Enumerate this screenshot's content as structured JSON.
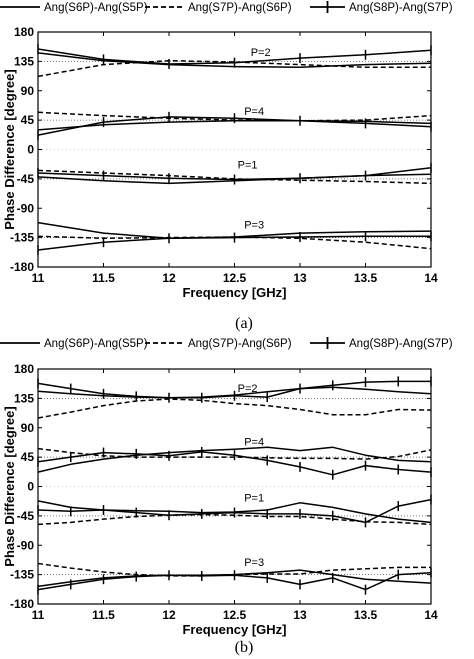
{
  "legend": [
    {
      "label": "Ang(S6P)-Ang(S5P)",
      "style": "solid"
    },
    {
      "label": "Ang(S7P)-Ang(S6P)",
      "style": "dashed"
    },
    {
      "label": "Ang(S8P)-Ang(S7P)",
      "style": "solid-plus"
    }
  ],
  "chart_data": [
    {
      "type": "line",
      "caption": "(a)",
      "xlabel": "Frequency [GHz]",
      "ylabel": "Phase Difference [degree]",
      "xlim": [
        11,
        14
      ],
      "ylim": [
        -180,
        180
      ],
      "xticks": [
        11,
        11.5,
        12,
        12.5,
        13,
        13.5,
        14
      ],
      "xtick_labels": [
        "11",
        "11.5",
        "12",
        "12.5",
        "13",
        "13.5",
        "14"
      ],
      "yticks": [
        180,
        135,
        90,
        45,
        0,
        -45,
        -90,
        -135,
        -180
      ],
      "grid": "horizontal-dotted",
      "reference_lines": [
        135,
        45,
        -45,
        -135
      ],
      "annotations": [
        {
          "text": "P=2",
          "x": 12.7,
          "y": 143
        },
        {
          "text": "P=4",
          "x": 12.65,
          "y": 53
        },
        {
          "text": "P=1",
          "x": 12.6,
          "y": -29
        },
        {
          "text": "P=3",
          "x": 12.65,
          "y": -121
        }
      ],
      "series": [
        {
          "name": "Ang(S6P)-Ang(S5P)",
          "group": "P=2",
          "x": [
            11,
            11.5,
            12,
            12.5,
            13,
            13.5,
            14
          ],
          "y": [
            148,
            136,
            130,
            127,
            126,
            130,
            132
          ]
        },
        {
          "name": "Ang(S7P)-Ang(S6P)",
          "group": "P=2",
          "x": [
            11,
            11.5,
            12,
            12.5,
            13,
            13.5,
            14
          ],
          "y": [
            112,
            130,
            136,
            134,
            130,
            126,
            126
          ]
        },
        {
          "name": "Ang(S8P)-Ang(S7P)",
          "group": "P=2",
          "x": [
            11,
            11.5,
            12,
            12.5,
            13,
            13.5,
            14
          ],
          "y": [
            154,
            138,
            131,
            133,
            140,
            145,
            152
          ]
        },
        {
          "name": "Ang(S6P)-Ang(S5P)",
          "group": "P=4",
          "x": [
            11,
            11.5,
            12,
            12.5,
            13,
            13.5,
            14
          ],
          "y": [
            30,
            38,
            42,
            44,
            44,
            43,
            40
          ]
        },
        {
          "name": "Ang(S7P)-Ang(S6P)",
          "group": "P=4",
          "x": [
            11,
            11.5,
            12,
            12.5,
            13,
            13.5,
            14
          ],
          "y": [
            57,
            52,
            48,
            45,
            44,
            45,
            52
          ]
        },
        {
          "name": "Ang(S8P)-Ang(S7P)",
          "group": "P=4",
          "x": [
            11,
            11.5,
            12,
            12.5,
            13,
            13.5,
            14
          ],
          "y": [
            22,
            42,
            50,
            48,
            44,
            40,
            35
          ]
        },
        {
          "name": "Ang(S6P)-Ang(S5P)",
          "group": "P=1",
          "x": [
            11,
            11.5,
            12,
            12.5,
            13,
            13.5,
            14
          ],
          "y": [
            -42,
            -48,
            -52,
            -48,
            -44,
            -40,
            -38
          ]
        },
        {
          "name": "Ang(S7P)-Ang(S6P)",
          "group": "P=1",
          "x": [
            11,
            11.5,
            12,
            12.5,
            13,
            13.5,
            14
          ],
          "y": [
            -32,
            -36,
            -40,
            -45,
            -47,
            -49,
            -52
          ]
        },
        {
          "name": "Ang(S8P)-Ang(S7P)",
          "group": "P=1",
          "x": [
            11,
            11.5,
            12,
            12.5,
            13,
            13.5,
            14
          ],
          "y": [
            -36,
            -40,
            -44,
            -46,
            -44,
            -40,
            -28
          ]
        },
        {
          "name": "Ang(S6P)-Ang(S5P)",
          "group": "P=3",
          "x": [
            11,
            11.5,
            12,
            12.5,
            13,
            13.5,
            14
          ],
          "y": [
            -112,
            -128,
            -136,
            -134,
            -128,
            -126,
            -125
          ]
        },
        {
          "name": "Ang(S7P)-Ang(S6P)",
          "group": "P=3",
          "x": [
            11,
            11.5,
            12,
            12.5,
            13,
            13.5,
            14
          ],
          "y": [
            -133,
            -136,
            -135,
            -134,
            -136,
            -142,
            -152
          ]
        },
        {
          "name": "Ang(S8P)-Ang(S7P)",
          "group": "P=3",
          "x": [
            11,
            11.5,
            12,
            12.5,
            13,
            13.5,
            14
          ],
          "y": [
            -154,
            -142,
            -136,
            -135,
            -134,
            -133,
            -133
          ]
        }
      ]
    },
    {
      "type": "line",
      "caption": "(b)",
      "xlabel": "Frequency [GHz]",
      "ylabel": "Phase Difference [degree]",
      "xlim": [
        11,
        14
      ],
      "ylim": [
        -180,
        180
      ],
      "xticks": [
        11,
        11.5,
        12,
        12.5,
        13,
        13.5,
        14
      ],
      "xtick_labels": [
        "11",
        "11.5",
        "12",
        "12.5",
        "13",
        "13.5",
        "14"
      ],
      "yticks": [
        180,
        135,
        90,
        45,
        0,
        -45,
        -90,
        -135,
        -180
      ],
      "grid": "horizontal-dotted",
      "reference_lines": [
        135,
        45,
        -45,
        -135
      ],
      "annotations": [
        {
          "text": "P=2",
          "x": 12.6,
          "y": 145
        },
        {
          "text": "P=4",
          "x": 12.65,
          "y": 63
        },
        {
          "text": "P=1",
          "x": 12.65,
          "y": -23
        },
        {
          "text": "P=3",
          "x": 12.65,
          "y": -122
        }
      ],
      "series": [
        {
          "name": "Ang(S6P)-Ang(S5P)",
          "group": "P=2",
          "x": [
            11,
            11.25,
            11.5,
            11.75,
            12,
            12.25,
            12.5,
            12.75,
            13,
            13.25,
            13.5,
            13.75,
            14
          ],
          "y": [
            146,
            142,
            139,
            137,
            136,
            137,
            140,
            145,
            150,
            152,
            149,
            145,
            142
          ]
        },
        {
          "name": "Ang(S7P)-Ang(S6P)",
          "group": "P=2",
          "x": [
            11,
            11.25,
            11.5,
            11.75,
            12,
            12.25,
            12.5,
            12.75,
            13,
            13.25,
            13.5,
            13.75,
            14
          ],
          "y": [
            105,
            114,
            124,
            131,
            134,
            132,
            127,
            124,
            118,
            110,
            110,
            118,
            117
          ]
        },
        {
          "name": "Ang(S8P)-Ang(S7P)",
          "group": "P=2",
          "x": [
            11,
            11.25,
            11.5,
            11.75,
            12,
            12.25,
            12.5,
            12.75,
            13,
            13.25,
            13.5,
            13.75,
            14
          ],
          "y": [
            158,
            150,
            142,
            138,
            136,
            136,
            139,
            137,
            150,
            155,
            160,
            161,
            161
          ]
        },
        {
          "name": "Ang(S6P)-Ang(S5P)",
          "group": "P=4",
          "x": [
            11,
            11.25,
            11.5,
            11.75,
            12,
            12.25,
            12.5,
            12.75,
            13,
            13.25,
            13.5,
            13.75,
            14
          ],
          "y": [
            22,
            34,
            42,
            48,
            52,
            55,
            57,
            60,
            55,
            60,
            48,
            40,
            38
          ]
        },
        {
          "name": "Ang(S7P)-Ang(S6P)",
          "group": "P=4",
          "x": [
            11,
            11.25,
            11.5,
            11.75,
            12,
            12.25,
            12.5,
            12.75,
            13,
            13.25,
            13.5,
            13.75,
            14
          ],
          "y": [
            58,
            52,
            47,
            45,
            45,
            45,
            45,
            44,
            43,
            43,
            42,
            46,
            56
          ]
        },
        {
          "name": "Ang(S8P)-Ang(S7P)",
          "group": "P=4",
          "x": [
            11,
            11.25,
            11.5,
            11.75,
            12,
            12.25,
            12.5,
            12.75,
            13,
            13.25,
            13.5,
            13.75,
            14
          ],
          "y": [
            38,
            45,
            52,
            50,
            47,
            53,
            48,
            40,
            30,
            18,
            32,
            26,
            22
          ]
        },
        {
          "name": "Ang(S6P)-Ang(S5P)",
          "group": "P=1",
          "x": [
            11,
            11.25,
            11.5,
            11.75,
            12,
            12.25,
            12.5,
            12.75,
            13,
            13.25,
            13.5,
            13.75,
            14
          ],
          "y": [
            -22,
            -32,
            -36,
            -37,
            -38,
            -40,
            -39,
            -36,
            -25,
            -32,
            -42,
            -50,
            -55
          ]
        },
        {
          "name": "Ang(S7P)-Ang(S6P)",
          "group": "P=1",
          "x": [
            11,
            11.25,
            11.5,
            11.75,
            12,
            12.25,
            12.5,
            12.75,
            13,
            13.25,
            13.5,
            13.75,
            14
          ],
          "y": [
            -58,
            -55,
            -50,
            -46,
            -44,
            -43,
            -44,
            -46,
            -46,
            -50,
            -54,
            -55,
            -58
          ]
        },
        {
          "name": "Ang(S8P)-Ang(S7P)",
          "group": "P=1",
          "x": [
            11,
            11.25,
            11.5,
            11.75,
            12,
            12.25,
            12.5,
            12.75,
            13,
            13.25,
            13.5,
            13.75,
            14
          ],
          "y": [
            -36,
            -38,
            -36,
            -40,
            -44,
            -42,
            -40,
            -42,
            -42,
            -45,
            -55,
            -30,
            -20
          ]
        },
        {
          "name": "Ang(S6P)-Ang(S5P)",
          "group": "P=3",
          "x": [
            11,
            11.25,
            11.5,
            11.75,
            12,
            12.25,
            12.5,
            12.75,
            13,
            13.25,
            13.5,
            13.75,
            14
          ],
          "y": [
            -153,
            -146,
            -140,
            -137,
            -136,
            -136,
            -135,
            -132,
            -128,
            -135,
            -142,
            -145,
            -148
          ]
        },
        {
          "name": "Ang(S7P)-Ang(S6P)",
          "group": "P=3",
          "x": [
            11,
            11.25,
            11.5,
            11.75,
            12,
            12.25,
            12.5,
            12.75,
            13,
            13.25,
            13.5,
            13.75,
            14
          ],
          "y": [
            -118,
            -125,
            -131,
            -135,
            -137,
            -137,
            -135,
            -134,
            -134,
            -128,
            -126,
            -124,
            -124
          ]
        },
        {
          "name": "Ang(S8P)-Ang(S7P)",
          "group": "P=3",
          "x": [
            11,
            11.25,
            11.5,
            11.75,
            12,
            12.25,
            12.5,
            12.75,
            13,
            13.25,
            13.5,
            13.75,
            14
          ],
          "y": [
            -158,
            -150,
            -142,
            -138,
            -136,
            -137,
            -136,
            -140,
            -150,
            -140,
            -158,
            -135,
            -132
          ]
        }
      ]
    }
  ]
}
